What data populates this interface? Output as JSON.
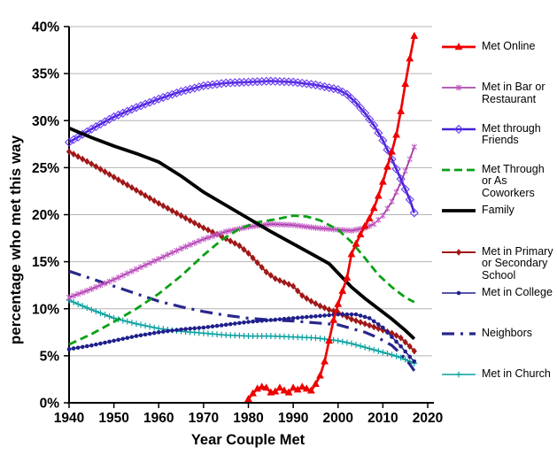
{
  "figure": {
    "background": "#ffffff",
    "grid_color": "#b3b3b3",
    "axis_color": "#000000"
  },
  "chart_data": {
    "type": "line",
    "title": "",
    "xlabel": "Year Couple Met",
    "ylabel": "percentage who met this way",
    "xlim": [
      1940,
      2020
    ],
    "ylim": [
      0,
      40
    ],
    "grid": "horizontal",
    "legend_position": "right",
    "x_ticks": [
      {
        "value": 1940,
        "label": "1940"
      },
      {
        "value": 1950,
        "label": "1950"
      },
      {
        "value": 1960,
        "label": "1960"
      },
      {
        "value": 1970,
        "label": "1970"
      },
      {
        "value": 1980,
        "label": "1980"
      },
      {
        "value": 1990,
        "label": "1990"
      },
      {
        "value": 2000,
        "label": "2000"
      },
      {
        "value": 2010,
        "label": "2010"
      },
      {
        "value": 2020,
        "label": "2020"
      }
    ],
    "y_ticks": [
      {
        "value": 0,
        "label": "0%"
      },
      {
        "value": 5,
        "label": "5%"
      },
      {
        "value": 10,
        "label": "10%"
      },
      {
        "value": 15,
        "label": "15%"
      },
      {
        "value": 20,
        "label": "20%"
      },
      {
        "value": 25,
        "label": "25%"
      },
      {
        "value": 30,
        "label": "30%"
      },
      {
        "value": 35,
        "label": "35%"
      },
      {
        "value": 40,
        "label": "40%"
      }
    ],
    "series": [
      {
        "id": "met-online",
        "name": "Met Online",
        "label_lines": [
          "Met Online"
        ],
        "color": "#ee0000",
        "width": 2.7,
        "dash": null,
        "marker": "triangle",
        "marker_color": "#ee0000",
        "z": 9,
        "points": [
          [
            1979.6,
            0.1
          ],
          [
            1980,
            0.4
          ],
          [
            1981,
            1.0
          ],
          [
            1982,
            1.5
          ],
          [
            1983,
            1.7
          ],
          [
            1984,
            1.6
          ],
          [
            1985,
            1.1
          ],
          [
            1986,
            1.2
          ],
          [
            1987,
            1.6
          ],
          [
            1988,
            1.3
          ],
          [
            1989,
            1.1
          ],
          [
            1990,
            1.6
          ],
          [
            1991,
            1.4
          ],
          [
            1992,
            1.7
          ],
          [
            1993,
            1.5
          ],
          [
            1994,
            1.3
          ],
          [
            1995,
            2.0
          ],
          [
            1996,
            2.9
          ],
          [
            1997,
            4.4
          ],
          [
            1998,
            6.6
          ],
          [
            1999,
            8.8
          ],
          [
            2000,
            10.5
          ],
          [
            2001,
            11.9
          ],
          [
            2002,
            13.3
          ],
          [
            2003,
            15.8
          ],
          [
            2004,
            16.9
          ],
          [
            2005,
            17.9
          ],
          [
            2006,
            18.8
          ],
          [
            2007,
            19.6
          ],
          [
            2008,
            20.7
          ],
          [
            2009,
            22.0
          ],
          [
            2010,
            23.5
          ],
          [
            2011,
            25.1
          ],
          [
            2012,
            26.7
          ],
          [
            2013,
            28.5
          ],
          [
            2014,
            31.0
          ],
          [
            2015,
            33.9
          ],
          [
            2016,
            36.6
          ],
          [
            2017,
            39.0
          ]
        ]
      },
      {
        "id": "met-in-bar-or-restaurant",
        "name": "Met in Bar or Restaurant",
        "label_lines": [
          "Met in Bar or",
          "Restaurant"
        ],
        "color": "#9b2d9b",
        "width": 1.6,
        "dash": null,
        "marker": "asterisk",
        "marker_color": "#c55ec5",
        "z": 5,
        "points": [
          [
            1940,
            11.2
          ],
          [
            1945,
            12.1
          ],
          [
            1950,
            13.1
          ],
          [
            1955,
            14.2
          ],
          [
            1960,
            15.3
          ],
          [
            1965,
            16.4
          ],
          [
            1970,
            17.4
          ],
          [
            1975,
            18.2
          ],
          [
            1980,
            18.7
          ],
          [
            1985,
            19.0
          ],
          [
            1990,
            18.9
          ],
          [
            1995,
            18.6
          ],
          [
            2000,
            18.4
          ],
          [
            2003,
            18.3
          ],
          [
            2006,
            18.6
          ],
          [
            2008,
            19.0
          ],
          [
            2010,
            19.9
          ],
          [
            2012,
            21.4
          ],
          [
            2014,
            23.4
          ],
          [
            2016,
            25.9
          ],
          [
            2017,
            27.2
          ]
        ]
      },
      {
        "id": "met-through-friends",
        "name": "Met through Friends",
        "label_lines": [
          "Met through",
          "Friends"
        ],
        "color": "#4521d6",
        "width": 2.6,
        "dash": null,
        "marker": "diamond-open",
        "marker_color": "#6b3df2",
        "z": 7,
        "points": [
          [
            1940,
            27.7
          ],
          [
            1945,
            29.1
          ],
          [
            1950,
            30.4
          ],
          [
            1955,
            31.4
          ],
          [
            1960,
            32.3
          ],
          [
            1965,
            33.1
          ],
          [
            1970,
            33.7
          ],
          [
            1975,
            34.0
          ],
          [
            1980,
            34.1
          ],
          [
            1985,
            34.2
          ],
          [
            1990,
            34.1
          ],
          [
            1995,
            33.8
          ],
          [
            2000,
            33.3
          ],
          [
            2002,
            32.8
          ],
          [
            2004,
            31.9
          ],
          [
            2006,
            30.8
          ],
          [
            2008,
            29.5
          ],
          [
            2010,
            27.9
          ],
          [
            2012,
            25.9
          ],
          [
            2014,
            23.8
          ],
          [
            2016,
            21.6
          ],
          [
            2017,
            20.2
          ]
        ]
      },
      {
        "id": "met-through-or-as-coworkers",
        "name": "Met Through or As Coworkers",
        "label_lines": [
          "Met Through",
          "or As",
          "Coworkers"
        ],
        "color": "#0aa014",
        "width": 2.8,
        "dash": "9 5",
        "marker": "none",
        "marker_color": "#0aa014",
        "z": 6,
        "points": [
          [
            1940,
            6.2
          ],
          [
            1945,
            7.3
          ],
          [
            1950,
            8.6
          ],
          [
            1955,
            10.0
          ],
          [
            1960,
            11.6
          ],
          [
            1965,
            13.5
          ],
          [
            1970,
            15.7
          ],
          [
            1974,
            17.3
          ],
          [
            1978,
            18.5
          ],
          [
            1982,
            19.2
          ],
          [
            1986,
            19.5
          ],
          [
            1990,
            19.9
          ],
          [
            1993,
            19.8
          ],
          [
            1996,
            19.4
          ],
          [
            2000,
            18.4
          ],
          [
            2003,
            17.1
          ],
          [
            2006,
            15.4
          ],
          [
            2009,
            13.6
          ],
          [
            2012,
            12.3
          ],
          [
            2015,
            11.2
          ],
          [
            2017,
            10.7
          ]
        ]
      },
      {
        "id": "family",
        "name": "Family",
        "label_lines": [
          "Family"
        ],
        "color": "#000000",
        "width": 3.8,
        "dash": null,
        "marker": "none",
        "marker_color": "#000000",
        "z": 8,
        "points": [
          [
            1940,
            29.2
          ],
          [
            1945,
            28.2
          ],
          [
            1950,
            27.3
          ],
          [
            1955,
            26.5
          ],
          [
            1960,
            25.6
          ],
          [
            1965,
            24.1
          ],
          [
            1970,
            22.4
          ],
          [
            1975,
            21.0
          ],
          [
            1980,
            19.6
          ],
          [
            1985,
            18.2
          ],
          [
            1990,
            16.9
          ],
          [
            1995,
            15.6
          ],
          [
            1998,
            14.8
          ],
          [
            2000,
            13.8
          ],
          [
            2003,
            12.3
          ],
          [
            2006,
            11.1
          ],
          [
            2009,
            10.0
          ],
          [
            2012,
            8.9
          ],
          [
            2015,
            7.7
          ],
          [
            2017,
            6.8
          ]
        ]
      },
      {
        "id": "met-in-primary-or-secondary-school",
        "name": "Met in Primary or Secondary School",
        "label_lines": [
          "Met in Primary",
          "or Secondary",
          "School"
        ],
        "color": "#a01818",
        "width": 2.0,
        "dash": null,
        "marker": "diamond",
        "marker_color": "#a01818",
        "z": 3,
        "points": [
          [
            1940,
            26.7
          ],
          [
            1945,
            25.4
          ],
          [
            1950,
            24.0
          ],
          [
            1955,
            22.6
          ],
          [
            1960,
            21.2
          ],
          [
            1965,
            19.9
          ],
          [
            1970,
            18.6
          ],
          [
            1974,
            17.7
          ],
          [
            1978,
            16.7
          ],
          [
            1980,
            15.9
          ],
          [
            1982,
            14.9
          ],
          [
            1984,
            13.9
          ],
          [
            1986,
            13.2
          ],
          [
            1988,
            12.8
          ],
          [
            1990,
            12.4
          ],
          [
            1992,
            11.4
          ],
          [
            1994,
            10.8
          ],
          [
            1996,
            10.3
          ],
          [
            1998,
            9.9
          ],
          [
            2000,
            9.6
          ],
          [
            2003,
            8.9
          ],
          [
            2006,
            8.4
          ],
          [
            2009,
            7.9
          ],
          [
            2012,
            7.4
          ],
          [
            2014,
            6.9
          ],
          [
            2016,
            6.0
          ],
          [
            2017,
            5.5
          ]
        ]
      },
      {
        "id": "met-in-college",
        "name": "Met in College",
        "label_lines": [
          "Met in College"
        ],
        "color": "#1f1f8c",
        "width": 1.5,
        "dash": null,
        "marker": "dot",
        "marker_color": "#1f1f8c",
        "z": 4,
        "points": [
          [
            1940,
            5.7
          ],
          [
            1945,
            6.1
          ],
          [
            1950,
            6.6
          ],
          [
            1955,
            7.1
          ],
          [
            1960,
            7.5
          ],
          [
            1965,
            7.8
          ],
          [
            1970,
            8.0
          ],
          [
            1975,
            8.3
          ],
          [
            1980,
            8.6
          ],
          [
            1985,
            8.8
          ],
          [
            1990,
            9.0
          ],
          [
            1995,
            9.2
          ],
          [
            2000,
            9.4
          ],
          [
            2004,
            9.4
          ],
          [
            2007,
            9.0
          ],
          [
            2010,
            8.0
          ],
          [
            2012,
            7.0
          ],
          [
            2014,
            6.0
          ],
          [
            2016,
            4.9
          ],
          [
            2017,
            4.4
          ]
        ]
      },
      {
        "id": "neighbors",
        "name": "Neighbors",
        "label_lines": [
          "Neighbors"
        ],
        "color": "#28288c",
        "width": 3.2,
        "dash": "14 7 3 7",
        "marker": "none",
        "marker_color": "#28288c",
        "z": 2,
        "points": [
          [
            1940,
            14.0
          ],
          [
            1945,
            13.2
          ],
          [
            1950,
            12.4
          ],
          [
            1955,
            11.6
          ],
          [
            1960,
            10.8
          ],
          [
            1965,
            10.2
          ],
          [
            1970,
            9.7
          ],
          [
            1975,
            9.3
          ],
          [
            1980,
            9.0
          ],
          [
            1985,
            8.8
          ],
          [
            1990,
            8.7
          ],
          [
            1995,
            8.5
          ],
          [
            2000,
            8.3
          ],
          [
            2003,
            7.9
          ],
          [
            2006,
            7.5
          ],
          [
            2009,
            6.9
          ],
          [
            2012,
            6.1
          ],
          [
            2014,
            5.2
          ],
          [
            2016,
            4.1
          ],
          [
            2017,
            3.4
          ]
        ]
      },
      {
        "id": "met-in-church",
        "name": "Met in Church",
        "label_lines": [
          "Met in Church"
        ],
        "color": "#09a0a0",
        "width": 1.5,
        "dash": null,
        "marker": "plus",
        "marker_color": "#09a0a0",
        "z": 1,
        "points": [
          [
            1940,
            10.9
          ],
          [
            1945,
            9.9
          ],
          [
            1950,
            9.0
          ],
          [
            1955,
            8.4
          ],
          [
            1960,
            7.9
          ],
          [
            1965,
            7.6
          ],
          [
            1970,
            7.4
          ],
          [
            1975,
            7.2
          ],
          [
            1980,
            7.1
          ],
          [
            1985,
            7.1
          ],
          [
            1990,
            7.0
          ],
          [
            1995,
            6.9
          ],
          [
            2000,
            6.6
          ],
          [
            2003,
            6.3
          ],
          [
            2006,
            5.9
          ],
          [
            2009,
            5.5
          ],
          [
            2012,
            5.1
          ],
          [
            2014,
            4.8
          ],
          [
            2016,
            4.4
          ],
          [
            2017,
            4.2
          ]
        ]
      }
    ]
  }
}
